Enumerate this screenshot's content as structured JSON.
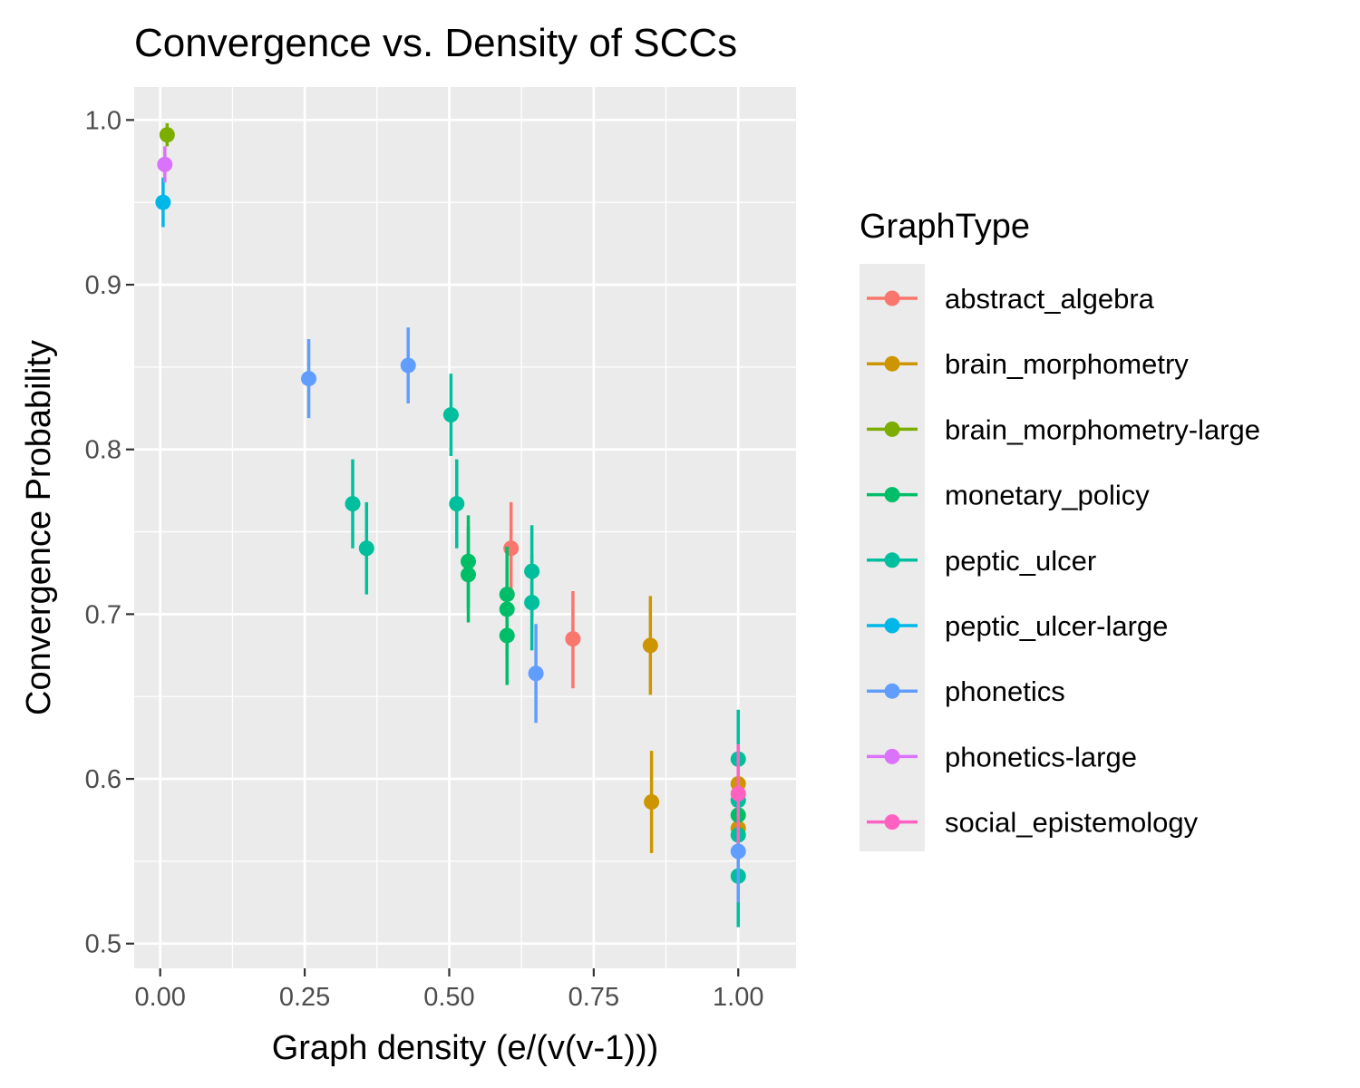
{
  "chart_data": {
    "type": "scatter",
    "title": "Convergence vs. Density of SCCs",
    "xlabel": "Graph density (e/(v(v-1)))",
    "ylabel": "Convergence Probability",
    "xlim": [
      -0.045,
      1.1
    ],
    "ylim": [
      0.485,
      1.02
    ],
    "x_ticks": [
      {
        "value": 0.0,
        "label": "0.00"
      },
      {
        "value": 0.25,
        "label": "0.25"
      },
      {
        "value": 0.5,
        "label": "0.50"
      },
      {
        "value": 0.75,
        "label": "0.75"
      },
      {
        "value": 1.0,
        "label": "1.00"
      }
    ],
    "y_ticks": [
      {
        "value": 0.5,
        "label": "0.5"
      },
      {
        "value": 0.6,
        "label": "0.6"
      },
      {
        "value": 0.7,
        "label": "0.7"
      },
      {
        "value": 0.8,
        "label": "0.8"
      },
      {
        "value": 0.9,
        "label": "0.9"
      },
      {
        "value": 1.0,
        "label": "1.0"
      }
    ],
    "grid": true,
    "background": "#ebebeb",
    "legend": {
      "title": "GraphType",
      "position": "right"
    },
    "series": [
      {
        "name": "abstract_algebra",
        "color": "#F8766D",
        "points": [
          {
            "x": 0.607,
            "y": 0.74,
            "ymin": 0.712,
            "ymax": 0.768
          },
          {
            "x": 0.714,
            "y": 0.685,
            "ymin": 0.655,
            "ymax": 0.714
          }
        ]
      },
      {
        "name": "brain_morphometry",
        "color": "#CD9600",
        "points": [
          {
            "x": 0.848,
            "y": 0.681,
            "ymin": 0.651,
            "ymax": 0.711
          },
          {
            "x": 0.85,
            "y": 0.586,
            "ymin": 0.555,
            "ymax": 0.617
          },
          {
            "x": 1.0,
            "y": 0.597,
            "ymin": 0.567,
            "ymax": 0.627
          },
          {
            "x": 1.0,
            "y": 0.57,
            "ymin": 0.54,
            "ymax": 0.6
          }
        ]
      },
      {
        "name": "brain_morphometry-large",
        "color": "#7CAE00",
        "points": [
          {
            "x": 0.012,
            "y": 0.991,
            "ymin": 0.984,
            "ymax": 0.998
          }
        ]
      },
      {
        "name": "monetary_policy",
        "color": "#00BE67",
        "points": [
          {
            "x": 0.533,
            "y": 0.732,
            "ymin": 0.704,
            "ymax": 0.76
          },
          {
            "x": 0.533,
            "y": 0.724,
            "ymin": 0.695,
            "ymax": 0.753
          },
          {
            "x": 0.6,
            "y": 0.712,
            "ymin": 0.683,
            "ymax": 0.741
          },
          {
            "x": 0.6,
            "y": 0.703,
            "ymin": 0.674,
            "ymax": 0.732
          },
          {
            "x": 0.6,
            "y": 0.687,
            "ymin": 0.657,
            "ymax": 0.717
          },
          {
            "x": 1.0,
            "y": 0.578,
            "ymin": 0.548,
            "ymax": 0.608
          }
        ]
      },
      {
        "name": "peptic_ulcer",
        "color": "#00BF9C",
        "points": [
          {
            "x": 0.333,
            "y": 0.767,
            "ymin": 0.74,
            "ymax": 0.794
          },
          {
            "x": 0.357,
            "y": 0.74,
            "ymin": 0.712,
            "ymax": 0.768
          },
          {
            "x": 0.503,
            "y": 0.821,
            "ymin": 0.796,
            "ymax": 0.846
          },
          {
            "x": 0.513,
            "y": 0.767,
            "ymin": 0.74,
            "ymax": 0.794
          },
          {
            "x": 0.643,
            "y": 0.726,
            "ymin": 0.698,
            "ymax": 0.754
          },
          {
            "x": 0.643,
            "y": 0.707,
            "ymin": 0.678,
            "ymax": 0.736
          },
          {
            "x": 1.0,
            "y": 0.612,
            "ymin": 0.582,
            "ymax": 0.642
          },
          {
            "x": 1.0,
            "y": 0.587,
            "ymin": 0.557,
            "ymax": 0.617
          },
          {
            "x": 1.0,
            "y": 0.566,
            "ymin": 0.536,
            "ymax": 0.596
          },
          {
            "x": 1.0,
            "y": 0.541,
            "ymin": 0.51,
            "ymax": 0.572
          }
        ]
      },
      {
        "name": "peptic_ulcer-large",
        "color": "#00B8E7",
        "points": [
          {
            "x": 0.005,
            "y": 0.95,
            "ymin": 0.935,
            "ymax": 0.965
          }
        ]
      },
      {
        "name": "phonetics",
        "color": "#619CFF",
        "points": [
          {
            "x": 0.257,
            "y": 0.843,
            "ymin": 0.819,
            "ymax": 0.867
          },
          {
            "x": 0.429,
            "y": 0.851,
            "ymin": 0.828,
            "ymax": 0.874
          },
          {
            "x": 0.65,
            "y": 0.664,
            "ymin": 0.634,
            "ymax": 0.694
          },
          {
            "x": 1.0,
            "y": 0.556,
            "ymin": 0.525,
            "ymax": 0.587
          }
        ]
      },
      {
        "name": "phonetics-large",
        "color": "#DB72FB",
        "points": [
          {
            "x": 0.008,
            "y": 0.973,
            "ymin": 0.962,
            "ymax": 0.984
          }
        ]
      },
      {
        "name": "social_epistemology",
        "color": "#FF61C3",
        "points": [
          {
            "x": 1.0,
            "y": 0.591,
            "ymin": 0.561,
            "ymax": 0.621
          }
        ]
      }
    ]
  }
}
